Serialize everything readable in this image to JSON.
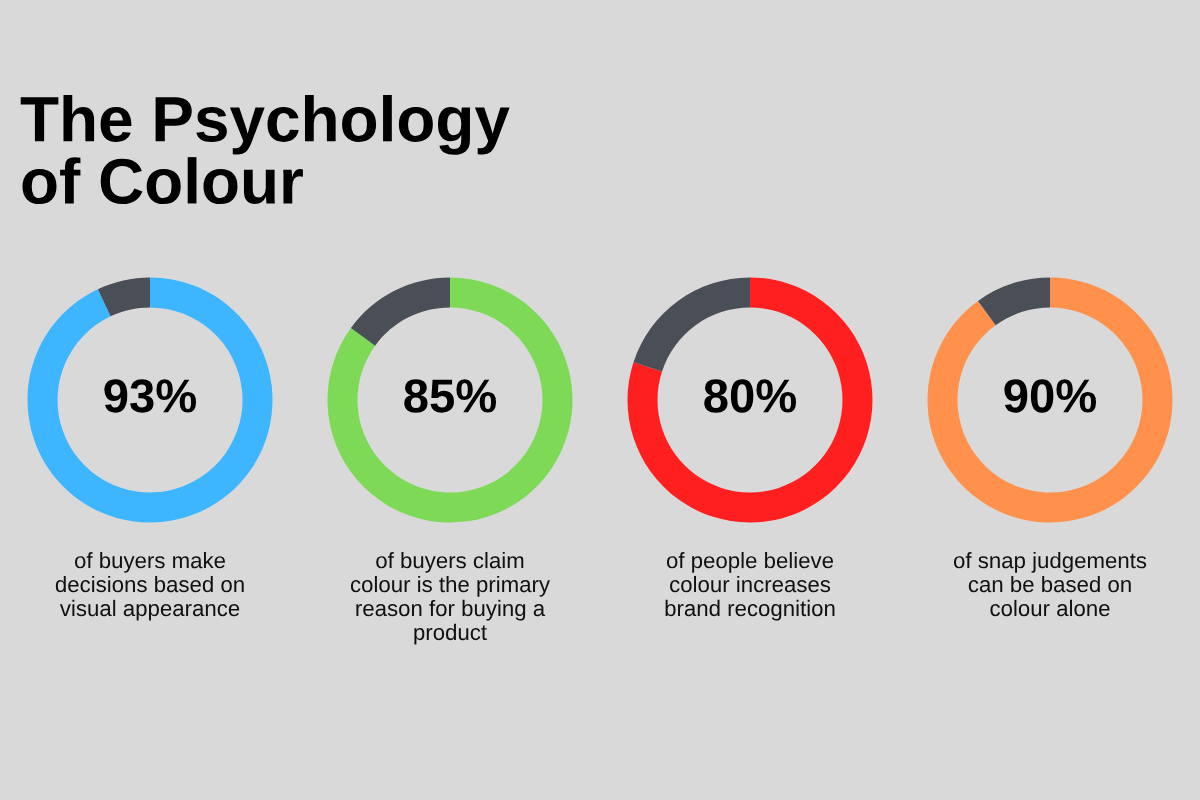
{
  "chart_data": [
    {
      "type": "donut",
      "title": "The Psychology\nof Colour",
      "categories": [
        null,
        null
      ],
      "values": [
        93,
        7
      ],
      "colors": [
        "#3db5ff",
        "#4a4f57"
      ],
      "value_labels": [
        "93%",
        null
      ],
      "annotations": [
        "of buyers make\ndecisions based on\nvisual appearance"
      ]
    },
    {
      "type": "donut",
      "categories": [
        null,
        null
      ],
      "values": [
        85,
        15
      ],
      "colors": [
        "#7ed957",
        "#4a4f57"
      ],
      "value_labels": [
        "85%",
        null
      ],
      "annotations": [
        "of buyers claim\ncolour is the primary\nreason for buying a\nproduct"
      ]
    },
    {
      "type": "donut",
      "categories": [
        null,
        null
      ],
      "values": [
        80,
        20
      ],
      "colors": [
        "#ff1f1f",
        "#4a4f57"
      ],
      "value_labels": [
        "80%",
        null
      ],
      "annotations": [
        "of people believe\ncolour increases\nbrand recognition"
      ]
    },
    {
      "type": "donut",
      "categories": [
        null,
        null
      ],
      "values": [
        90,
        10
      ],
      "colors": [
        "#ff914d",
        "#4a4f57"
      ],
      "value_labels": [
        "90%",
        null
      ],
      "annotations": [
        "of snap judgements\ncan be based on\ncolour alone"
      ]
    }
  ]
}
